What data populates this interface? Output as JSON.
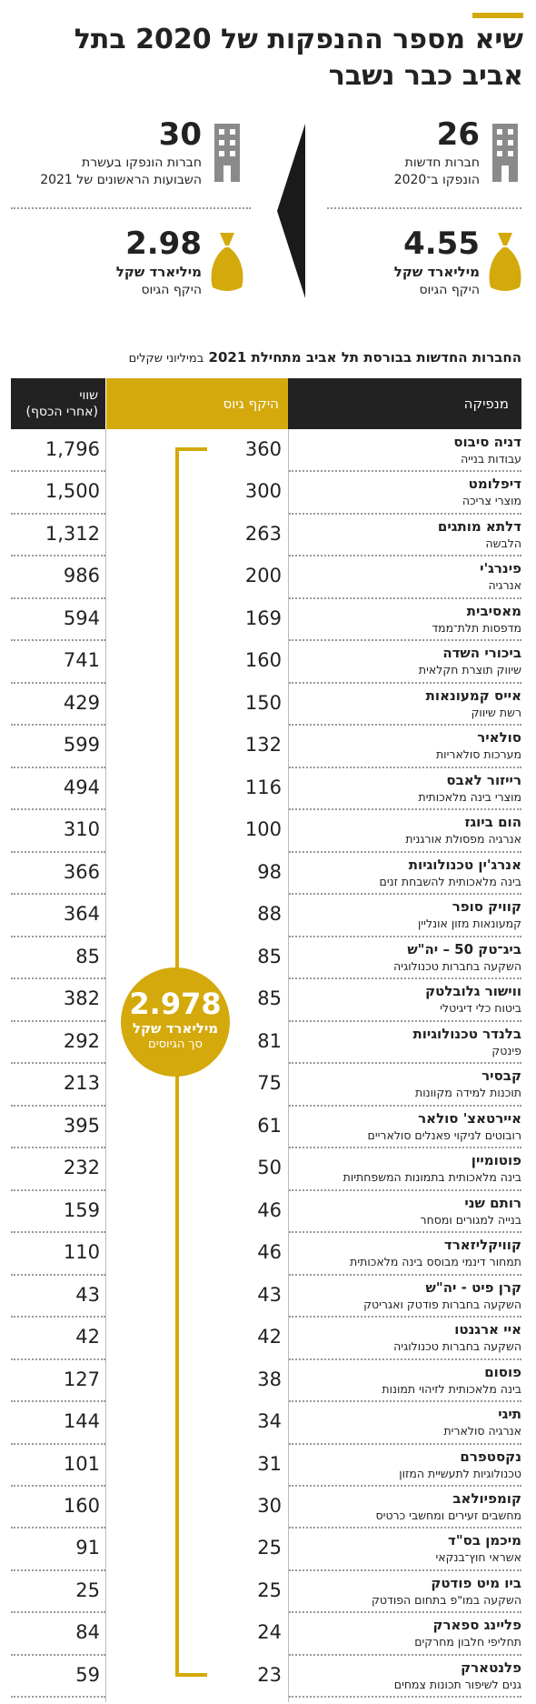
{
  "title": "שיא מספר ההנפקות של 2020 בתל אביב כבר נשבר",
  "stats": {
    "y2020": {
      "count": "26",
      "count_text": [
        "חברות חדשות",
        "הונפקו ב־2020"
      ],
      "amount": "4.55",
      "amount_unit": "מיליארד שקל",
      "amount_label": "היקף הגיוס"
    },
    "y2021": {
      "count": "30",
      "count_text": [
        "חברות הונפקו בעשרת",
        "השבועות הראשונים של 2021"
      ],
      "amount": "2.98",
      "amount_unit": "מיליארד שקל",
      "amount_label": "היקף הגיוס"
    }
  },
  "table": {
    "title": "החברות החדשות בבורסת תל אביב מתחילת 2021",
    "unit": "במיליוני שקלים",
    "headers": {
      "name": "מנפיקה",
      "raise": "היקף גיוס",
      "value": [
        "שווי",
        "(אחרי הכסף)"
      ]
    },
    "rows": [
      {
        "name": "דניה סיבוס",
        "sector": "עבודות בנייה",
        "raise": "360",
        "value": "1,796"
      },
      {
        "name": "דיפלומט",
        "sector": "מוצרי צריכה",
        "raise": "300",
        "value": "1,500"
      },
      {
        "name": "דלתא מותגים",
        "sector": "הלבשה",
        "raise": "263",
        "value": "1,312"
      },
      {
        "name": "פינרג'י",
        "sector": "אנרגיה",
        "raise": "200",
        "value": "986"
      },
      {
        "name": "מאסיבית",
        "sector": "מדפסות תלת־ממד",
        "raise": "169",
        "value": "594"
      },
      {
        "name": "ביכורי השדה",
        "sector": "שיווק תוצרת חקלאית",
        "raise": "160",
        "value": "741"
      },
      {
        "name": "אייס קמעונאות",
        "sector": "רשת שיווק",
        "raise": "150",
        "value": "429"
      },
      {
        "name": "סולאיר",
        "sector": "מערכות סולאריות",
        "raise": "132",
        "value": "599"
      },
      {
        "name": "רייזור לאבס",
        "sector": "מוצרי בינה מלאכותית",
        "raise": "116",
        "value": "494"
      },
      {
        "name": "הום ביוגז",
        "sector": "אנרגיה מפסולת אורגנית",
        "raise": "100",
        "value": "310"
      },
      {
        "name": "אנרג'ין טכנולוגיות",
        "sector": "בינה מלאכותית להשבחת זנים",
        "raise": "98",
        "value": "366"
      },
      {
        "name": "קוויק סופר",
        "sector": "קמעונאות מזון אונליין",
        "raise": "88",
        "value": "364"
      },
      {
        "name": "ביג־טק 50 – יה\"ש",
        "sector": "השקעה בחברות טכנולוגיה",
        "raise": "85",
        "value": "85"
      },
      {
        "name": "ווישור גלובלטק",
        "sector": "ביטוח כלי דיגיטלי",
        "raise": "85",
        "value": "382"
      },
      {
        "name": "בלנדר טכנולוגיות",
        "sector": "פינטק",
        "raise": "81",
        "value": "292"
      },
      {
        "name": "קבסיר",
        "sector": "תוכנות למידה מקוונות",
        "raise": "75",
        "value": "213"
      },
      {
        "name": "איירטאצ' סולאר",
        "sector": "רובוטים לניקוי פאנלים סולאריים",
        "raise": "61",
        "value": "395"
      },
      {
        "name": "פוטומיין",
        "sector": "בינה מלאכותית בתמונות המשפחתיות",
        "raise": "50",
        "value": "232"
      },
      {
        "name": "רותם שני",
        "sector": "בנייה למגורים ומסחר",
        "raise": "46",
        "value": "159"
      },
      {
        "name": "קוויקליזארד",
        "sector": "תמחור דינמי מבוסס בינה מלאכותית",
        "raise": "46",
        "value": "110"
      },
      {
        "name": "קרן פיט - יה\"ש",
        "sector": "השקעה בחברות פודטק ואגריטק",
        "raise": "43",
        "value": "43"
      },
      {
        "name": "איי ארגנטו",
        "sector": "השקעה בחברות טכנולוגיה",
        "raise": "42",
        "value": "42"
      },
      {
        "name": "פוסום",
        "sector": "בינה מלאכותית לזיהוי תמונות",
        "raise": "38",
        "value": "127"
      },
      {
        "name": "תיגי",
        "sector": "אנרגיה סולארית",
        "raise": "34",
        "value": "144"
      },
      {
        "name": "נקסטפרם",
        "sector": "טכנולוגיות לתעשיית המזון",
        "raise": "31",
        "value": "101"
      },
      {
        "name": "קומפיולאב",
        "sector": "מחשבים זעירים ומחשבי כרטיס",
        "raise": "30",
        "value": "160"
      },
      {
        "name": "מיכמן בס\"ד",
        "sector": "אשראי חוץ־בנקאי",
        "raise": "25",
        "value": "91"
      },
      {
        "name": "ביו מיט פודטק",
        "sector": "השקעה במו\"פ בתחום הפודטק",
        "raise": "25",
        "value": "25"
      },
      {
        "name": "פליינג ספארק",
        "sector": "תחליפי חלבון מחרקים",
        "raise": "24",
        "value": "84"
      },
      {
        "name": "פלנטארק",
        "sector": "גנים לשיפור תכונות צמחים",
        "raise": "23",
        "value": "59"
      }
    ]
  },
  "total": {
    "value": "2.978",
    "unit": "מיליארד שקל",
    "label": "סך הגיוסים"
  }
}
